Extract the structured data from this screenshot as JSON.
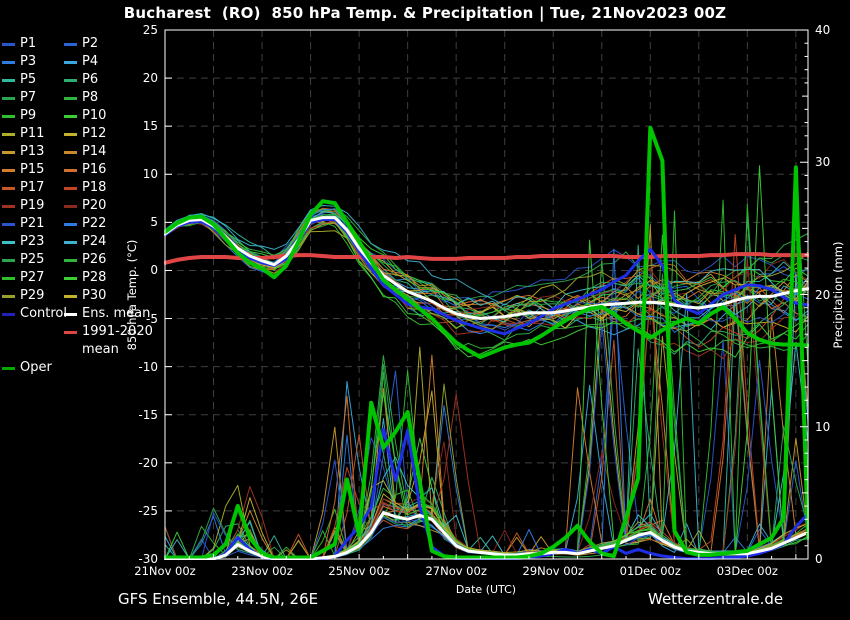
{
  "title": "Bucharest  (RO)  850 hPa Temp. & Precipitation | Tue, 21Nov2023 00Z",
  "footer": {
    "left": "GFS Ensemble, 44.5N, 26E",
    "right": "Wetterzentrale.de"
  },
  "axes": {
    "x": {
      "label": "Date (UTC)",
      "hours_span": 318,
      "day_step_hours": 24,
      "tick_hours": [
        0,
        48,
        96,
        144,
        192,
        240,
        288
      ],
      "tick_labels": [
        "21Nov 00z",
        "23Nov 00z",
        "25Nov 00z",
        "27Nov 00z",
        "29Nov 00z",
        "01Dec 00z",
        "03Dec 00z"
      ]
    },
    "y_left": {
      "label": "850 hPa Temp. (°C)",
      "min": -30,
      "max": 25,
      "ticks": [
        25,
        20,
        15,
        10,
        5,
        0,
        -5,
        -10,
        -15,
        -20,
        -25,
        -30
      ]
    },
    "y_right": {
      "label": "Precipitation (mm)",
      "min": 0,
      "max": 40,
      "ticks": [
        0,
        10,
        20,
        30,
        40
      ]
    }
  },
  "style": {
    "background": "#000000",
    "frame": "#ffffff",
    "grid": "#3f3f3f",
    "mean": "#ffffff",
    "control": "#1f2fe8",
    "oper": "#00c400",
    "climate": "#e04545",
    "control_swatch": "#2222bb",
    "oper_swatch": "#00aa00"
  },
  "legend": {
    "items": [
      {
        "label": "P1",
        "color": "#2b55cc"
      },
      {
        "label": "P2",
        "color": "#2b62d6"
      },
      {
        "label": "P3",
        "color": "#2e7ce0"
      },
      {
        "label": "P4",
        "color": "#3aa8de"
      },
      {
        "label": "P5",
        "color": "#2eb89e"
      },
      {
        "label": "P6",
        "color": "#2eae6e"
      },
      {
        "label": "P7",
        "color": "#2ca44e"
      },
      {
        "label": "P8",
        "color": "#31b43e"
      },
      {
        "label": "P9",
        "color": "#2ebe2e"
      },
      {
        "label": "P10",
        "color": "#3ccf35"
      },
      {
        "label": "P11",
        "color": "#aeae29"
      },
      {
        "label": "P12",
        "color": "#c2b22d"
      },
      {
        "label": "P13",
        "color": "#c6982d"
      },
      {
        "label": "P14",
        "color": "#ca882d"
      },
      {
        "label": "P15",
        "color": "#d27d2d"
      },
      {
        "label": "P16",
        "color": "#d2702d"
      },
      {
        "label": "P17",
        "color": "#c55927"
      },
      {
        "label": "P18",
        "color": "#c24625"
      },
      {
        "label": "P19",
        "color": "#a13221"
      },
      {
        "label": "P20",
        "color": "#8c291d"
      },
      {
        "label": "P21",
        "color": "#2b55cc"
      },
      {
        "label": "P22",
        "color": "#2e7ce0"
      },
      {
        "label": "P23",
        "color": "#3dc0ca"
      },
      {
        "label": "P24",
        "color": "#3db2ca"
      },
      {
        "label": "P25",
        "color": "#2ca44e"
      },
      {
        "label": "P26",
        "color": "#31b43e"
      },
      {
        "label": "P27",
        "color": "#2ebe2e"
      },
      {
        "label": "P28",
        "color": "#3ccf35"
      },
      {
        "label": "P29",
        "color": "#98a129"
      },
      {
        "label": "P30",
        "color": "#c2b22d"
      },
      {
        "label": "Control",
        "color": "#2222bb"
      },
      {
        "label": "Ens. mean",
        "color": "#ffffff"
      },
      {
        "label": "",
        "color": null
      },
      {
        "label": "1991-2020 mean",
        "color": "#e04545"
      },
      {
        "label": "Oper",
        "color": "#00aa00"
      }
    ]
  },
  "chart_data": {
    "type": "line",
    "title": "Bucharest (RO) 850 hPa Temp. & Precipitation, GFS Ensemble run Tue 21Nov2023 00Z",
    "xlabel": "Date (UTC)",
    "ylabel_left": "850 hPa Temp. (°C)",
    "ylabel_right": "Precipitation (mm)",
    "ylim_left": [
      -30,
      25
    ],
    "ylim_right": [
      0,
      40
    ],
    "grid": "dashed, every 24h vertical, every 5C horizontal",
    "legend_position": "outside-left",
    "x_hours": [
      0,
      6,
      12,
      18,
      24,
      30,
      36,
      42,
      48,
      54,
      60,
      66,
      72,
      78,
      84,
      90,
      96,
      102,
      108,
      114,
      120,
      126,
      132,
      138,
      144,
      150,
      156,
      162,
      168,
      174,
      180,
      186,
      192,
      198,
      204,
      210,
      216,
      222,
      228,
      234,
      240,
      246,
      252,
      258,
      264,
      270,
      276,
      282,
      288,
      294,
      300,
      306,
      312,
      318
    ],
    "temp_series": [
      {
        "name": "Ens. mean",
        "color": "#ffffff",
        "width": 3,
        "values": [
          3.8,
          4.7,
          5.2,
          5.3,
          4.6,
          3.5,
          2.3,
          1.5,
          1.0,
          0.6,
          1.5,
          3.2,
          5.2,
          5.5,
          5.5,
          4.2,
          2.3,
          0.8,
          -0.5,
          -1.4,
          -2.2,
          -2.7,
          -3.2,
          -3.9,
          -4.5,
          -4.8,
          -5.0,
          -4.9,
          -4.8,
          -4.6,
          -4.4,
          -4.4,
          -4.4,
          -4.2,
          -4.0,
          -3.8,
          -3.6,
          -3.5,
          -3.4,
          -3.3,
          -3.3,
          -3.4,
          -3.6,
          -3.8,
          -3.9,
          -3.7,
          -3.5,
          -3.1,
          -2.8,
          -2.7,
          -2.7,
          -2.4,
          -2.1,
          -1.9
        ]
      },
      {
        "name": "Control",
        "color": "#1f2fe8",
        "width": 3,
        "values": [
          3.7,
          4.6,
          5.0,
          5.1,
          4.4,
          3.2,
          2.0,
          1.3,
          0.8,
          0.5,
          1.2,
          3.0,
          5.0,
          5.3,
          5.3,
          4.0,
          2.0,
          0.2,
          -1.5,
          -2.5,
          -3.5,
          -3.8,
          -4.0,
          -4.6,
          -5.2,
          -5.6,
          -6.0,
          -6.3,
          -6.6,
          -6.0,
          -5.5,
          -4.8,
          -4.0,
          -3.5,
          -3.0,
          -2.5,
          -2.0,
          -1.2,
          -0.5,
          1.0,
          2.2,
          0.5,
          -3.1,
          -4.0,
          -4.5,
          -3.5,
          -2.5,
          -2.0,
          -1.5,
          -1.6,
          -2.0,
          -2.8,
          -3.4,
          -3.6
        ]
      },
      {
        "name": "Oper",
        "color": "#00c400",
        "width": 4,
        "values": [
          4.0,
          4.9,
          5.5,
          5.6,
          4.8,
          3.3,
          1.8,
          0.8,
          0.2,
          -0.7,
          0.5,
          3.0,
          5.8,
          7.2,
          7.0,
          5.0,
          3.0,
          1.0,
          -1.0,
          -2.0,
          -3.0,
          -4.0,
          -5.0,
          -6.3,
          -7.5,
          -8.3,
          -9.0,
          -8.5,
          -8.0,
          -7.7,
          -7.5,
          -6.8,
          -6.0,
          -5.2,
          -4.5,
          -4.0,
          -3.8,
          -4.5,
          -5.5,
          -6.3,
          -7.0,
          -6.2,
          -5.5,
          -5.0,
          -5.5,
          -4.5,
          -3.8,
          -5.0,
          -6.5,
          -7.2,
          -7.6,
          -7.7,
          -7.7,
          -7.8
        ]
      },
      {
        "name": "1991-2020 mean",
        "color": "#e04545",
        "width": 4,
        "values": [
          0.8,
          1.1,
          1.3,
          1.4,
          1.4,
          1.4,
          1.3,
          1.3,
          1.3,
          1.4,
          1.5,
          1.6,
          1.6,
          1.5,
          1.4,
          1.4,
          1.4,
          1.4,
          1.4,
          1.3,
          1.4,
          1.3,
          1.2,
          1.2,
          1.2,
          1.3,
          1.3,
          1.3,
          1.3,
          1.4,
          1.4,
          1.5,
          1.5,
          1.5,
          1.5,
          1.5,
          1.5,
          1.5,
          1.4,
          1.4,
          1.4,
          1.5,
          1.5,
          1.5,
          1.5,
          1.6,
          1.6,
          1.7,
          1.7,
          1.7,
          1.6,
          1.6,
          1.6,
          1.6
        ]
      }
    ],
    "precip_series": [
      {
        "name": "Ens. mean",
        "color": "#ffffff",
        "width": 3,
        "values": [
          0,
          0,
          0,
          0,
          0,
          0.3,
          1.1,
          0.6,
          0.2,
          0,
          0,
          0,
          0,
          0.1,
          0.2,
          0.5,
          1.0,
          2.0,
          3.5,
          3.2,
          3.0,
          3.3,
          3.0,
          2.0,
          1.0,
          0.6,
          0.5,
          0.4,
          0.3,
          0.3,
          0.4,
          0.4,
          0.5,
          0.5,
          0.4,
          0.6,
          0.8,
          1.0,
          1.4,
          1.8,
          2.0,
          1.4,
          0.9,
          0.6,
          0.5,
          0.4,
          0.4,
          0.4,
          0.4,
          0.6,
          0.8,
          1.2,
          1.6,
          2.0
        ]
      },
      {
        "name": "Control",
        "color": "#1f2fe8",
        "width": 3,
        "values": [
          0,
          0,
          0,
          0,
          0,
          0.5,
          1.7,
          0.8,
          0.2,
          0,
          0,
          0,
          0,
          0,
          0.3,
          1.5,
          2.5,
          4.0,
          9.9,
          6.0,
          9.8,
          4.0,
          1.0,
          0.3,
          0.1,
          0,
          0,
          0,
          0,
          0.1,
          0.2,
          0.3,
          0.5,
          0.8,
          0.5,
          0.8,
          0.5,
          1.0,
          0.5,
          0.8,
          0.5,
          0.3,
          0.2,
          0.1,
          0.1,
          0.1,
          0.2,
          0.2,
          0.3,
          0.5,
          0.8,
          1.2,
          2.5,
          3.5
        ]
      },
      {
        "name": "Oper",
        "color": "#00c400",
        "width": 4,
        "values": [
          0,
          0,
          0,
          0,
          0.2,
          1.0,
          3.9,
          1.5,
          0.3,
          0,
          0,
          0,
          0,
          0.5,
          1.0,
          5.9,
          1.7,
          11.7,
          8.3,
          9.5,
          11.0,
          5.7,
          0.5,
          0.1,
          0,
          0,
          0,
          0,
          0,
          0,
          0.1,
          0.3,
          0.8,
          1.5,
          2.4,
          1.2,
          0.3,
          0.1,
          3.0,
          6.0,
          32.5,
          30.0,
          2.0,
          0.4,
          0.2,
          0.2,
          0.3,
          0.4,
          0.5,
          1.0,
          1.5,
          3.0,
          29.5,
          1.5
        ]
      }
    ],
    "ensemble": {
      "count": 30,
      "seed": 21,
      "member_width": 1,
      "temp_spread": [
        0.5,
        0.6,
        0.7,
        0.7,
        0.8,
        0.9,
        1.0,
        1.1,
        1.2,
        1.2,
        1.2,
        1.3,
        1.3,
        1.4,
        1.5,
        1.7,
        2.0,
        2.2,
        2.5,
        2.6,
        2.8,
        2.9,
        3.0,
        3.2,
        3.4,
        3.5,
        3.6,
        3.6,
        3.7,
        3.7,
        3.8,
        3.8,
        3.9,
        4.0,
        4.0,
        4.1,
        4.2,
        4.3,
        4.4,
        4.5,
        4.6,
        4.7,
        4.8,
        4.8,
        4.9,
        5.0,
        5.0,
        5.1,
        5.2,
        5.3,
        5.4,
        5.5,
        5.6,
        5.7
      ],
      "precip_events": [
        [
          24,
          48,
          4,
          0.55
        ],
        [
          84,
          150,
          13,
          0.85
        ],
        [
          204,
          264,
          26,
          0.55
        ],
        [
          276,
          318,
          28,
          0.5
        ]
      ]
    }
  }
}
